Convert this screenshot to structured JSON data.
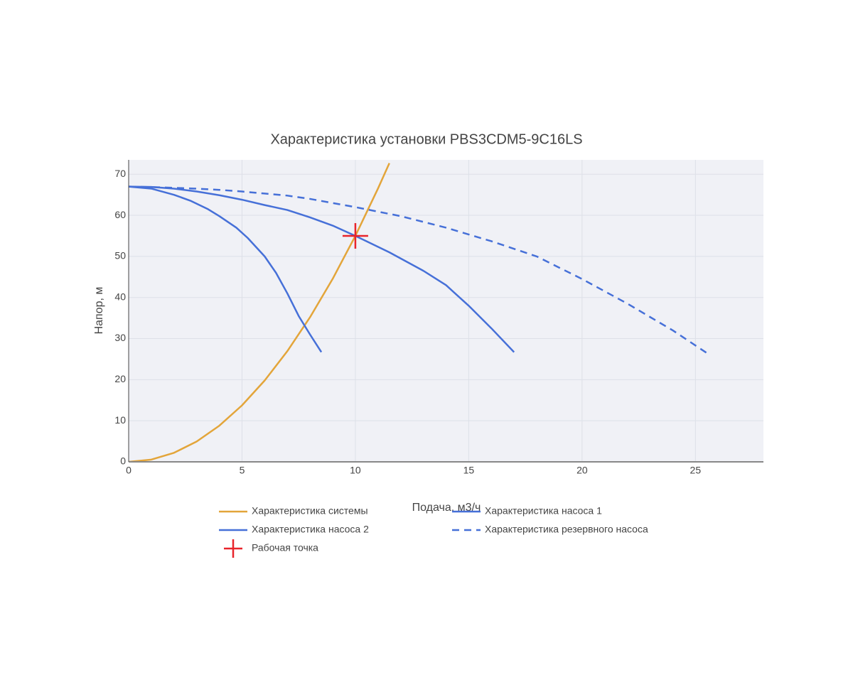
{
  "chart_data": {
    "type": "line",
    "title": "Характеристика установки PBS3CDM5-9C16LS",
    "x_label": "Подача, м3/ч",
    "y_label": "Напор, м",
    "xlim": [
      0,
      28
    ],
    "ylim": [
      0,
      73.5
    ],
    "xticks": [
      0,
      5,
      10,
      15,
      20,
      25
    ],
    "yticks": [
      0,
      10,
      20,
      30,
      40,
      50,
      60,
      70
    ],
    "grid": true,
    "series": [
      {
        "name": "Характеристика системы",
        "color": "#e3a53a",
        "dash": false,
        "x": [
          0,
          1,
          2,
          3,
          4,
          5,
          6,
          7,
          8,
          9,
          10,
          11,
          11.5
        ],
        "values": [
          0,
          0.55,
          2.2,
          4.95,
          8.8,
          13.75,
          19.8,
          26.95,
          35.2,
          44.55,
          55,
          66.55,
          72.7
        ]
      },
      {
        "name": "Характеристика насоса 1",
        "color": "#4670d8",
        "dash": false,
        "x": [
          0,
          1,
          2,
          3,
          4,
          5,
          6,
          7,
          8,
          9,
          10,
          11.5,
          13,
          14,
          15,
          16,
          17
        ],
        "values": [
          67,
          66.9,
          66.5,
          65.8,
          64.9,
          63.8,
          62.5,
          61.3,
          59.5,
          57.5,
          55,
          51,
          46.5,
          43,
          38,
          32.5,
          26.7
        ]
      },
      {
        "name": "Характеристика насоса 2",
        "color": "#4670d8",
        "dash": false,
        "x": [
          0,
          1,
          2,
          2.75,
          3.5,
          4,
          4.75,
          5.25,
          6,
          6.5,
          7,
          7.5,
          8,
          8.5
        ],
        "values": [
          67,
          66.5,
          65,
          63.5,
          61.5,
          59.8,
          57,
          54.5,
          50,
          46,
          41,
          35.5,
          31,
          26.7
        ]
      },
      {
        "name": "Характеристика резервного насоса",
        "color": "#4670d8",
        "dash": true,
        "x": [
          0,
          1.5,
          3,
          4,
          5,
          6,
          7,
          8,
          9,
          10,
          12,
          14,
          16,
          18,
          20,
          22,
          24,
          25.5
        ],
        "values": [
          67,
          66.8,
          66.5,
          66.2,
          65.8,
          65.3,
          64.8,
          64,
          63,
          62,
          59.8,
          57,
          53.7,
          50,
          44.5,
          38.5,
          32,
          26.5
        ]
      },
      {
        "name": "Рабочая точка",
        "color": "#e8242b",
        "marker": "cross",
        "x": [
          10
        ],
        "values": [
          55
        ]
      }
    ]
  }
}
